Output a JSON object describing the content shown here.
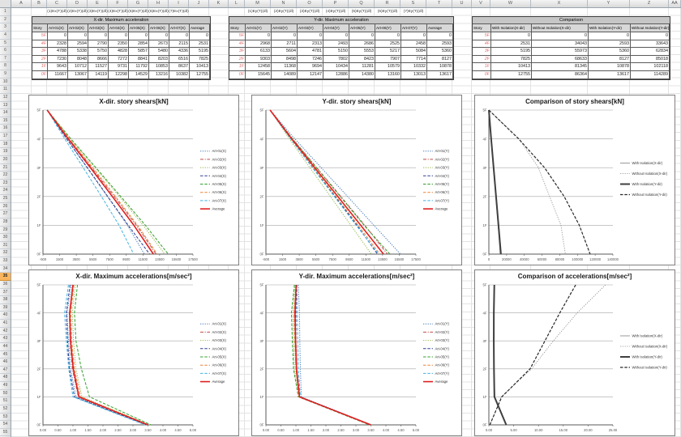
{
  "sheet": {
    "col_letters": [
      "A",
      "B",
      "C",
      "D",
      "E",
      "F",
      "G",
      "H",
      "I",
      "J",
      "K",
      "L",
      "M",
      "N",
      "O",
      "P",
      "Q",
      "R",
      "S",
      "T",
      "U",
      "V",
      "W",
      "X",
      "Y",
      "Z",
      "AA"
    ],
    "row_count": 55,
    "selected_row": 35
  },
  "colors": {
    "series": [
      "#4A7EBB",
      "#BE4B48",
      "#98B954",
      "#2E3D8F",
      "#33A02C",
      "#E8853D",
      "#45B3E0",
      "#E02020"
    ],
    "comparison": [
      "#7F7F7F",
      "#8C8C8C",
      "#3F3F3F",
      "#262626"
    ],
    "row_select": "#F9B45C"
  },
  "tables": [
    {
      "name": "x-dir-table",
      "top_labels": [
        "(1)Ex(T)(dl)",
        "(2)Ex(T)(dl)",
        "(3)Ex(T)(dl)",
        "(4)Ex(T)(dl)",
        "(5)Ex(T)(dl)",
        "(6)Ex(T)(dl)",
        "(7)Ex(T)(dl)"
      ],
      "title": "X-dir. Maximum acceleration",
      "headers": [
        "Story",
        "Art-01(X)",
        "Art-02(X)",
        "Art-03(X)",
        "Art-04(X)",
        "Art-05(X)",
        "Art-06(X)",
        "Art-07(X)",
        "Average"
      ],
      "rows": [
        [
          "5F",
          0,
          0,
          0,
          0,
          0,
          0,
          0,
          0
        ],
        [
          "4F",
          2328,
          2594,
          2790,
          2350,
          2854,
          2673,
          2115,
          2531
        ],
        [
          "3F",
          4788,
          5338,
          5750,
          4828,
          5857,
          5480,
          4336,
          5195
        ],
        [
          "2F",
          7230,
          8048,
          8666,
          7272,
          8841,
          8203,
          6516,
          7825
        ],
        [
          "1F",
          9643,
          10712,
          11527,
          9731,
          11792,
          10853,
          8637,
          10413
        ],
        [
          "0F",
          11667,
          13067,
          14119,
          12298,
          14529,
          13216,
          10382,
          12755
        ]
      ]
    },
    {
      "name": "y-dir-table",
      "top_labels": [
        "(1)Ey(T)(dl)",
        "(2)Ey(T)(dl)",
        "(3)Ey(T)(dl)",
        "(4)Ey(T)(dl)",
        "(5)Ey(T)(dl)",
        "(6)Ey(T)(dl)",
        "(7)Ey(T)(dl)"
      ],
      "title": "Y-dir. Maximum acceleration",
      "headers": [
        "Story",
        "Art-01(Y)",
        "Art-02(Y)",
        "Art-03(Y)",
        "Art-04(Y)",
        "Art-05(Y)",
        "Art-06(Y)",
        "Art-07(Y)",
        "Average"
      ],
      "rows": [
        [
          "5F",
          0,
          0,
          0,
          0,
          0,
          0,
          0,
          0
        ],
        [
          "4F",
          2968,
          2711,
          2313,
          2493,
          2686,
          2525,
          2458,
          2593
        ],
        [
          "3F",
          6133,
          5604,
          4781,
          5150,
          5553,
          5217,
          5084,
          5360
        ],
        [
          "2F",
          9303,
          8498,
          7246,
          7802,
          8423,
          7907,
          7714,
          8127
        ],
        [
          "1F",
          12458,
          11368,
          9694,
          10434,
          11281,
          10579,
          10332,
          10878
        ],
        [
          "0F",
          15645,
          14089,
          12147,
          12886,
          14380,
          13160,
          13013,
          13617
        ]
      ]
    },
    {
      "name": "comparison-table",
      "top_labels": [],
      "title": "Comparison",
      "headers": [
        "Story",
        "With Isolation(X-dir)",
        "Without Isolation(X-dir)",
        "With Isolation(Y-dir)",
        "Without Isolation(Y-dir)"
      ],
      "rows": [
        [
          "5F",
          0,
          0,
          0,
          0
        ],
        [
          "4F",
          2531,
          34043,
          2593,
          33643
        ],
        [
          "3F",
          5195,
          55973,
          5360,
          62834
        ],
        [
          "2F",
          7825,
          68633,
          8127,
          85018
        ],
        [
          "1F",
          10413,
          81345,
          10878,
          102118
        ],
        [
          "0F",
          12755,
          86364,
          13617,
          114289
        ]
      ]
    }
  ],
  "chart_data": [
    {
      "id": "x-shears",
      "type": "line",
      "title": "X-dir. story shears[kN]",
      "categories": [
        "5F",
        "4F",
        "3F",
        "2F",
        "1F",
        "0F"
      ],
      "xlim": [
        -500,
        17500
      ],
      "grid": true,
      "legend_position": "right",
      "xticks": [
        "-500",
        "1500",
        "3500",
        "5500",
        "7500",
        "9500",
        "11500",
        "13500",
        "15500",
        "17500"
      ],
      "series": [
        {
          "name": "Art-01(X)",
          "color": "#4A7EBB",
          "style": "dotted",
          "width": 1,
          "values": [
            0,
            2328,
            4788,
            7230,
            9643,
            11667
          ]
        },
        {
          "name": "Art-02(X)",
          "color": "#BE4B48",
          "style": "dashdot",
          "width": 1,
          "values": [
            0,
            2594,
            5338,
            8048,
            10712,
            13067
          ]
        },
        {
          "name": "Art-03(X)",
          "color": "#98B954",
          "style": "dotted",
          "width": 1,
          "values": [
            0,
            2790,
            5750,
            8666,
            11527,
            14119
          ]
        },
        {
          "name": "Art-04(X)",
          "color": "#2E3D8F",
          "style": "dashed",
          "width": 1,
          "values": [
            0,
            2350,
            4828,
            7272,
            9731,
            12298
          ]
        },
        {
          "name": "Art-05(X)",
          "color": "#33A02C",
          "style": "dashed",
          "width": 1,
          "values": [
            0,
            2854,
            5857,
            8841,
            11792,
            14529
          ]
        },
        {
          "name": "Art-06(X)",
          "color": "#E8853D",
          "style": "dashed",
          "width": 1,
          "values": [
            0,
            2673,
            5480,
            8203,
            10853,
            13216
          ]
        },
        {
          "name": "Art-07(X)",
          "color": "#45B3E0",
          "style": "dashed",
          "width": 1,
          "values": [
            0,
            2115,
            4336,
            6516,
            8637,
            10382
          ]
        },
        {
          "name": "Average",
          "color": "#E02020",
          "style": "solid",
          "width": 1.6,
          "values": [
            0,
            2531,
            5195,
            7825,
            10413,
            12755
          ]
        }
      ]
    },
    {
      "id": "y-shears",
      "type": "line",
      "title": "Y-dir. story shears[kN]",
      "categories": [
        "5F",
        "4F",
        "3F",
        "2F",
        "1F",
        "0F"
      ],
      "xlim": [
        -500,
        17500
      ],
      "grid": true,
      "legend_position": "right",
      "xticks": [
        "-500",
        "1500",
        "3500",
        "5500",
        "7500",
        "9500",
        "11500",
        "13500",
        "15500",
        "17500"
      ],
      "series": [
        {
          "name": "Art-01(Y)",
          "color": "#4A7EBB",
          "style": "dotted",
          "width": 1,
          "values": [
            0,
            2968,
            6133,
            9303,
            12458,
            15645
          ]
        },
        {
          "name": "Art-02(Y)",
          "color": "#BE4B48",
          "style": "dashdot",
          "width": 1,
          "values": [
            0,
            2711,
            5604,
            8498,
            11368,
            14089
          ]
        },
        {
          "name": "Art-03(Y)",
          "color": "#98B954",
          "style": "dotted",
          "width": 1,
          "values": [
            0,
            2313,
            4781,
            7246,
            9694,
            12147
          ]
        },
        {
          "name": "Art-04(Y)",
          "color": "#2E3D8F",
          "style": "dashed",
          "width": 1,
          "values": [
            0,
            2493,
            5150,
            7802,
            10434,
            12886
          ]
        },
        {
          "name": "Art-05(Y)",
          "color": "#33A02C",
          "style": "dashed",
          "width": 1,
          "values": [
            0,
            2686,
            5553,
            8423,
            11281,
            14380
          ]
        },
        {
          "name": "Art-06(Y)",
          "color": "#E8853D",
          "style": "dashed",
          "width": 1,
          "values": [
            0,
            2525,
            5217,
            7907,
            10579,
            13160
          ]
        },
        {
          "name": "Art-07(Y)",
          "color": "#45B3E0",
          "style": "dashed",
          "width": 1,
          "values": [
            0,
            2458,
            5084,
            7714,
            10332,
            13013
          ]
        },
        {
          "name": "Average",
          "color": "#E02020",
          "style": "solid",
          "width": 1.6,
          "values": [
            0,
            2593,
            5360,
            8127,
            10878,
            13617
          ]
        }
      ]
    },
    {
      "id": "comparison-shears",
      "type": "line",
      "title": "Comparison of story shears[kN]",
      "categories": [
        "5F",
        "4F",
        "3F",
        "2F",
        "1F",
        "0F"
      ],
      "xlim": [
        0,
        140000
      ],
      "grid": true,
      "legend_position": "right",
      "xticks": [
        "0",
        "20000",
        "40000",
        "60000",
        "80000",
        "100000",
        "120000",
        "140000"
      ],
      "series": [
        {
          "name": "With Isolation(X-dir)",
          "color": "#7F7F7F",
          "style": "solid",
          "width": 0.8,
          "values": [
            0,
            2531,
            5195,
            7825,
            10413,
            12755
          ]
        },
        {
          "name": "Without Isolation(X-dir)",
          "color": "#8C8C8C",
          "style": "dotted",
          "width": 0.8,
          "values": [
            0,
            34043,
            55973,
            68633,
            81345,
            86364
          ]
        },
        {
          "name": "With Isolation(Y-dir)",
          "color": "#3F3F3F",
          "style": "solid",
          "width": 2,
          "values": [
            0,
            2593,
            5360,
            8127,
            10878,
            13617
          ]
        },
        {
          "name": "Without Isolation(Y-dir)",
          "color": "#262626",
          "style": "dashed",
          "width": 1.2,
          "values": [
            0,
            33643,
            62834,
            85018,
            102118,
            114289
          ]
        }
      ]
    },
    {
      "id": "x-accel",
      "type": "line",
      "title": "X-dir. Maximum accelerations[m/sec²]",
      "categories": [
        "5F",
        "4F",
        "3F",
        "2F",
        "1F",
        "0F"
      ],
      "xlim": [
        0,
        5
      ],
      "grid": true,
      "legend_position": "right",
      "xticks": [
        "0.00",
        "0.50",
        "1.00",
        "1.50",
        "2.00",
        "2.50",
        "3.00",
        "3.50",
        "4.00",
        "4.50",
        "5.00"
      ],
      "series": [
        {
          "name": "Art-01(X)",
          "color": "#4A7EBB",
          "style": "dotted",
          "width": 1,
          "values": [
            0.95,
            0.8,
            0.85,
            0.92,
            1.1,
            3.5
          ]
        },
        {
          "name": "Art-02(X)",
          "color": "#BE4B48",
          "style": "dashdot",
          "width": 1,
          "values": [
            1.0,
            0.88,
            0.9,
            0.98,
            1.18,
            3.5
          ]
        },
        {
          "name": "Art-03(X)",
          "color": "#98B954",
          "style": "dotted",
          "width": 1,
          "values": [
            1.08,
            0.98,
            1.02,
            1.1,
            1.3,
            3.55
          ]
        },
        {
          "name": "Art-04(X)",
          "color": "#2E3D8F",
          "style": "dashed",
          "width": 1,
          "values": [
            0.9,
            0.78,
            0.82,
            0.88,
            1.05,
            3.45
          ]
        },
        {
          "name": "Art-05(X)",
          "color": "#33A02C",
          "style": "dashed",
          "width": 1,
          "values": [
            1.15,
            1.05,
            1.1,
            1.28,
            1.55,
            3.6
          ]
        },
        {
          "name": "Art-06(X)",
          "color": "#E8853D",
          "style": "dashed",
          "width": 1,
          "values": [
            1.03,
            0.93,
            0.96,
            1.05,
            1.25,
            3.5
          ]
        },
        {
          "name": "Art-07(X)",
          "color": "#45B3E0",
          "style": "dashed",
          "width": 1,
          "values": [
            0.85,
            0.72,
            0.78,
            0.86,
            1.0,
            3.4
          ]
        },
        {
          "name": "Average",
          "color": "#E02020",
          "style": "solid",
          "width": 1.6,
          "values": [
            1.0,
            0.89,
            0.92,
            1.01,
            1.2,
            3.5
          ]
        }
      ]
    },
    {
      "id": "y-accel",
      "type": "line",
      "title": "Y-dir. Maximum accelerations[m/sec²]",
      "categories": [
        "5F",
        "4F",
        "3F",
        "2F",
        "1F",
        "0F"
      ],
      "xlim": [
        0,
        5
      ],
      "grid": true,
      "legend_position": "right",
      "xticks": [
        "0.00",
        "0.50",
        "1.00",
        "1.50",
        "2.00",
        "2.50",
        "3.00",
        "3.50",
        "4.00",
        "4.50",
        "5.00"
      ],
      "series": [
        {
          "name": "Art-01(Y)",
          "color": "#4A7EBB",
          "style": "dotted",
          "width": 1,
          "values": [
            1.08,
            1.12,
            1.13,
            1.15,
            1.18,
            3.52
          ]
        },
        {
          "name": "Art-02(Y)",
          "color": "#BE4B48",
          "style": "dashdot",
          "width": 1,
          "values": [
            1.0,
            0.96,
            0.98,
            1.0,
            1.12,
            3.5
          ]
        },
        {
          "name": "Art-03(Y)",
          "color": "#98B954",
          "style": "dotted",
          "width": 1,
          "values": [
            0.97,
            0.9,
            0.92,
            0.95,
            1.1,
            3.48
          ]
        },
        {
          "name": "Art-04(Y)",
          "color": "#2E3D8F",
          "style": "dashed",
          "width": 1,
          "values": [
            1.02,
            1.0,
            1.0,
            1.03,
            1.13,
            3.5
          ]
        },
        {
          "name": "Art-05(Y)",
          "color": "#33A02C",
          "style": "dashed",
          "width": 1,
          "values": [
            0.95,
            0.85,
            0.88,
            0.92,
            1.08,
            3.45
          ]
        },
        {
          "name": "Art-06(Y)",
          "color": "#E8853D",
          "style": "dashed",
          "width": 1,
          "values": [
            1.0,
            0.94,
            0.96,
            1.0,
            1.1,
            3.5
          ]
        },
        {
          "name": "Art-07(Y)",
          "color": "#45B3E0",
          "style": "dashed",
          "width": 1,
          "values": [
            1.04,
            1.05,
            1.06,
            1.08,
            1.15,
            3.5
          ]
        },
        {
          "name": "Average",
          "color": "#E02020",
          "style": "solid",
          "width": 1.6,
          "values": [
            1.01,
            0.97,
            0.99,
            1.02,
            1.12,
            3.5
          ]
        }
      ]
    },
    {
      "id": "comparison-accel",
      "type": "line",
      "title": "Comparison of accelerations[m/sec²]",
      "categories": [
        "5F",
        "4F",
        "3F",
        "2F",
        "1F",
        "0F"
      ],
      "xlim": [
        0,
        25
      ],
      "grid": true,
      "legend_position": "right",
      "xticks": [
        "0.00",
        "5.00",
        "10.00",
        "15.00",
        "20.00",
        "25.00"
      ],
      "series": [
        {
          "name": "With Isolation(X-dir)",
          "color": "#7F7F7F",
          "style": "solid",
          "width": 0.8,
          "values": [
            1.15,
            1.05,
            1.02,
            1.06,
            1.2,
            3.5
          ]
        },
        {
          "name": "Without Isolation(X-dir)",
          "color": "#8C8C8C",
          "style": "dotted",
          "width": 0.8,
          "values": [
            23.5,
            17.8,
            13.0,
            8.6,
            2.5,
            0.2
          ]
        },
        {
          "name": "With Isolation(Y-dir)",
          "color": "#3F3F3F",
          "style": "solid",
          "width": 2,
          "values": [
            1.1,
            1.0,
            0.99,
            1.03,
            1.12,
            3.5
          ]
        },
        {
          "name": "Without Isolation(Y-dir)",
          "color": "#262626",
          "style": "dashed",
          "width": 1.2,
          "values": [
            17.5,
            14.3,
            11.3,
            8.3,
            2.6,
            0.2
          ]
        }
      ]
    }
  ]
}
